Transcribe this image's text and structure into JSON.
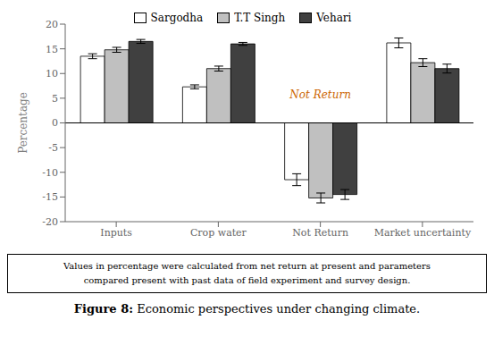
{
  "chart_data": {
    "type": "bar",
    "categories": [
      "Inputs",
      "Crop water",
      "Not Return",
      "Market uncertainty"
    ],
    "series": [
      {
        "name": "Sargodha",
        "color": "#ffffff",
        "values": [
          13.5,
          7.3,
          -11.5,
          16.2
        ],
        "errors": [
          0.5,
          0.4,
          1.2,
          1.0
        ]
      },
      {
        "name": "T.T Singh",
        "color": "#c0c0c0",
        "values": [
          14.8,
          11.0,
          -15.2,
          12.2
        ],
        "errors": [
          0.5,
          0.5,
          1.0,
          0.8
        ]
      },
      {
        "name": "Vehari",
        "color": "#404040",
        "values": [
          16.5,
          16.0,
          -14.5,
          11.0
        ],
        "errors": [
          0.4,
          0.3,
          1.0,
          0.9
        ]
      }
    ],
    "ylabel": "Percentage",
    "ylim": [
      -20,
      20
    ],
    "yticks": [
      -20,
      -15,
      -10,
      -5,
      0,
      5,
      10,
      15,
      20
    ],
    "grid": false,
    "legend": "top",
    "annotations": [
      {
        "text": "Not Return",
        "x": "Not Return",
        "y": 4.0,
        "color": "#cc6600"
      }
    ],
    "caption": [
      "Values in percentage were calculated from net return at present and parameters",
      "compared present with past data of field experiment and survey design."
    ],
    "figure_caption": {
      "label": "Figure 8:",
      "text": "Economic perspectives under changing climate."
    }
  }
}
